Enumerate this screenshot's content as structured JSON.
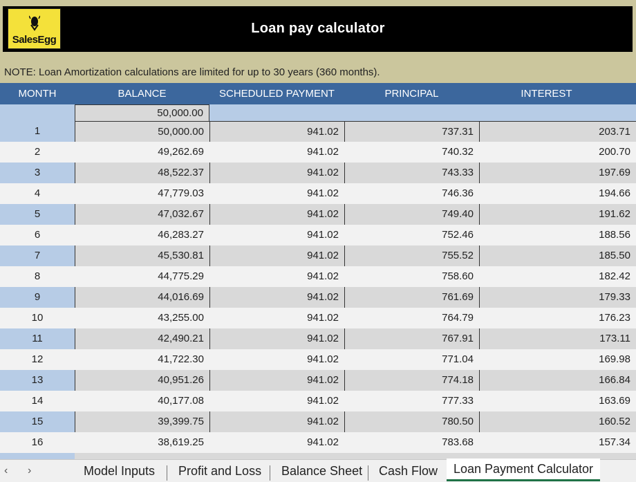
{
  "app": {
    "logo_text": "SalesEgg",
    "title": "Loan pay calculator",
    "note": "NOTE: Loan Amortization calculations are limited for up to 30 years (360 months)."
  },
  "table": {
    "headers": [
      "MONTH",
      "BALANCE",
      "SCHEDULED PAYMENT",
      "PRINCIPAL",
      "INTEREST"
    ],
    "opening_balance": "50,000.00",
    "rows": [
      {
        "month": "1",
        "balance": "50,000.00",
        "payment": "941.02",
        "principal": "737.31",
        "interest": "203.71"
      },
      {
        "month": "2",
        "balance": "49,262.69",
        "payment": "941.02",
        "principal": "740.32",
        "interest": "200.70"
      },
      {
        "month": "3",
        "balance": "48,522.37",
        "payment": "941.02",
        "principal": "743.33",
        "interest": "197.69"
      },
      {
        "month": "4",
        "balance": "47,779.03",
        "payment": "941.02",
        "principal": "746.36",
        "interest": "194.66"
      },
      {
        "month": "5",
        "balance": "47,032.67",
        "payment": "941.02",
        "principal": "749.40",
        "interest": "191.62"
      },
      {
        "month": "6",
        "balance": "46,283.27",
        "payment": "941.02",
        "principal": "752.46",
        "interest": "188.56"
      },
      {
        "month": "7",
        "balance": "45,530.81",
        "payment": "941.02",
        "principal": "755.52",
        "interest": "185.50"
      },
      {
        "month": "8",
        "balance": "44,775.29",
        "payment": "941.02",
        "principal": "758.60",
        "interest": "182.42"
      },
      {
        "month": "9",
        "balance": "44,016.69",
        "payment": "941.02",
        "principal": "761.69",
        "interest": "179.33"
      },
      {
        "month": "10",
        "balance": "43,255.00",
        "payment": "941.02",
        "principal": "764.79",
        "interest": "176.23"
      },
      {
        "month": "11",
        "balance": "42,490.21",
        "payment": "941.02",
        "principal": "767.91",
        "interest": "173.11"
      },
      {
        "month": "12",
        "balance": "41,722.30",
        "payment": "941.02",
        "principal": "771.04",
        "interest": "169.98"
      },
      {
        "month": "13",
        "balance": "40,951.26",
        "payment": "941.02",
        "principal": "774.18",
        "interest": "166.84"
      },
      {
        "month": "14",
        "balance": "40,177.08",
        "payment": "941.02",
        "principal": "777.33",
        "interest": "163.69"
      },
      {
        "month": "15",
        "balance": "39,399.75",
        "payment": "941.02",
        "principal": "780.50",
        "interest": "160.52"
      },
      {
        "month": "16",
        "balance": "38,619.25",
        "payment": "941.02",
        "principal": "783.68",
        "interest": "157.34"
      }
    ]
  },
  "tabs": {
    "nav_prev": "‹",
    "nav_next": "›",
    "items": [
      "Model Inputs",
      "Profit and Loss",
      "Balance Sheet",
      "Cash Flow"
    ],
    "active": "Loan Payment Calculator"
  },
  "colors": {
    "header_band": "#cbc69d",
    "table_header": "#3c679d",
    "row_blue": "#b7cce6",
    "row_gray": "#d9d9d9",
    "row_light": "#f2f2f2",
    "logo_bg": "#f4e13a"
  }
}
